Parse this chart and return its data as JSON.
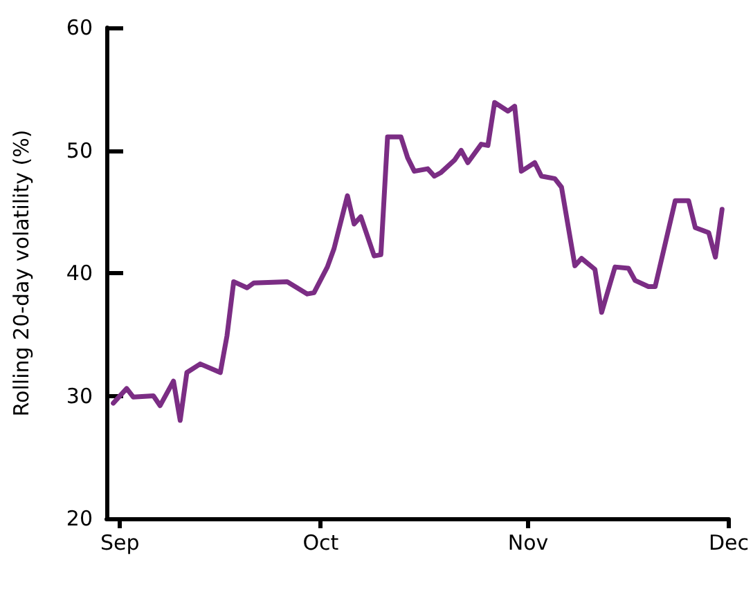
{
  "chart_data": {
    "type": "line",
    "ylabel": "Rolling 20-day volatility (%)",
    "x": [
      "--08-31",
      "--09-02",
      "--09-03",
      "--09-06",
      "--09-07",
      "--09-09",
      "--09-10",
      "--09-11",
      "--09-13",
      "--09-16",
      "--09-17",
      "--09-18",
      "--09-20",
      "--09-21",
      "--09-26",
      "--09-29",
      "--09-30",
      "--10-02",
      "--10-03",
      "--10-05",
      "--10-06",
      "--10-07",
      "--10-09",
      "--10-10",
      "--10-11",
      "--10-13",
      "--10-14",
      "--10-15",
      "--10-17",
      "--10-18",
      "--10-19",
      "--10-21",
      "--10-22",
      "--10-23",
      "--10-25",
      "--10-26",
      "--10-27",
      "--10-29",
      "--10-30",
      "--10-31",
      "--11-02",
      "--11-03",
      "--11-05",
      "--11-06",
      "--11-08",
      "--11-09",
      "--11-11",
      "--11-12",
      "--11-14",
      "--11-16",
      "--11-17",
      "--11-19",
      "--11-20",
      "--11-23",
      "--11-25",
      "--11-26",
      "--11-28",
      "--11-29",
      "--11-30"
    ],
    "series": [
      {
        "color": "#7b2d84",
        "values": [
          29.4,
          30.6,
          29.9,
          30.0,
          29.2,
          31.2,
          28.0,
          31.9,
          32.6,
          31.9,
          34.9,
          39.3,
          38.8,
          39.2,
          39.3,
          38.3,
          38.4,
          40.5,
          42.0,
          46.3,
          44.0,
          44.6,
          41.4,
          41.5,
          51.1,
          51.1,
          49.4,
          48.3,
          48.5,
          47.9,
          48.2,
          49.2,
          50.0,
          49.0,
          50.5,
          50.4,
          53.9,
          53.2,
          53.6,
          48.3,
          49.0,
          47.9,
          47.7,
          47.0,
          40.6,
          41.2,
          40.3,
          36.8,
          40.5,
          40.4,
          39.4,
          38.9,
          38.9,
          45.9,
          45.9,
          43.7,
          43.3,
          41.3,
          45.2
        ]
      }
    ],
    "xlim": [
      "--08-30",
      "--12-01"
    ],
    "xticks": [
      {
        "value": "--09-01",
        "label": "Sep"
      },
      {
        "value": "--10-01",
        "label": "Oct"
      },
      {
        "value": "--11-01",
        "label": "Nov"
      },
      {
        "value": "--12-01",
        "label": "Dec"
      }
    ],
    "ylim": [
      20,
      60
    ],
    "yticks": [
      20,
      30,
      40,
      50,
      60
    ],
    "grid": false,
    "marker": "none",
    "line_style": "solid"
  }
}
